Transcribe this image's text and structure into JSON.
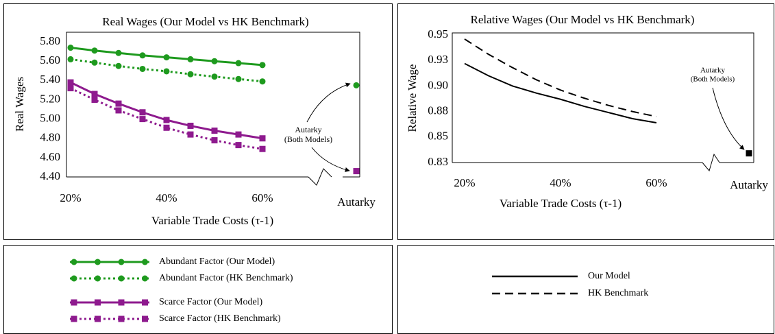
{
  "chart_data": [
    {
      "type": "line",
      "title": "Real Wages (Our Model vs HK Benchmark)",
      "xlabel": "Variable Trade Costs (τ-1)",
      "ylabel": "Real Wages",
      "x": [
        20,
        25,
        30,
        35,
        40,
        45,
        50,
        55,
        60
      ],
      "series": [
        {
          "name": "Abundant Factor (Our Model)",
          "color": "#1e9a1e",
          "marker": "circle",
          "dash": "solid",
          "values": [
            5.74,
            5.71,
            5.685,
            5.66,
            5.64,
            5.62,
            5.6,
            5.58,
            5.56
          ]
        },
        {
          "name": "Abundant Factor (HK Benchmark)",
          "color": "#1e9a1e",
          "marker": "circle",
          "dash": "dotted",
          "values": [
            5.62,
            5.585,
            5.55,
            5.52,
            5.495,
            5.465,
            5.44,
            5.415,
            5.39
          ]
        },
        {
          "name": "Scarce Factor (Our Model)",
          "color": "#8e1a8e",
          "marker": "square",
          "dash": "solid",
          "values": [
            5.38,
            5.26,
            5.16,
            5.07,
            4.99,
            4.93,
            4.88,
            4.84,
            4.8
          ]
        },
        {
          "name": "Scarce Factor (HK Benchmark)",
          "color": "#8e1a8e",
          "marker": "square",
          "dash": "dotted",
          "values": [
            5.32,
            5.2,
            5.09,
            5.0,
            4.91,
            4.84,
            4.78,
            4.73,
            4.69
          ]
        }
      ],
      "autarky": {
        "label": "Autarky",
        "values": [
          5.35,
          4.46
        ],
        "colors": [
          "#1e9a1e",
          "#8e1a8e"
        ],
        "markers": [
          "circle",
          "square"
        ]
      },
      "annotation": [
        "Autarky",
        "(Both Models)"
      ],
      "xlim": [
        20,
        60
      ],
      "xticks": [
        {
          "value": 20,
          "label": "20%"
        },
        {
          "value": 40,
          "label": "40%"
        },
        {
          "value": 60,
          "label": "60%"
        }
      ],
      "ylim": [
        4.4,
        5.9
      ],
      "yticks": [
        {
          "value": 4.4,
          "label": "4.40"
        },
        {
          "value": 4.6,
          "label": "4.60"
        },
        {
          "value": 4.8,
          "label": "4.80"
        },
        {
          "value": 5.0,
          "label": "5.00"
        },
        {
          "value": 5.2,
          "label": "5.20"
        },
        {
          "value": 5.4,
          "label": "5.40"
        },
        {
          "value": 5.6,
          "label": "5.60"
        },
        {
          "value": 5.8,
          "label": "5.80"
        }
      ]
    },
    {
      "type": "line",
      "title": "Relative Wages (Our Model vs HK Benchmark)",
      "xlabel": "Variable Trade Costs (τ-1)",
      "ylabel": "Relative Wage",
      "x": [
        20,
        25,
        30,
        35,
        40,
        45,
        50,
        55,
        60
      ],
      "series": [
        {
          "name": "Our Model",
          "color": "#000000",
          "marker": "none",
          "dash": "solid",
          "values": [
            0.922,
            0.91,
            0.9,
            0.893,
            0.887,
            0.88,
            0.874,
            0.868,
            0.864
          ]
        },
        {
          "name": "HK Benchmark",
          "color": "#000000",
          "marker": "none",
          "dash": "dashed",
          "values": [
            0.946,
            0.931,
            0.918,
            0.906,
            0.896,
            0.888,
            0.881,
            0.875,
            0.87
          ]
        }
      ],
      "autarky": {
        "label": "Autarky",
        "values": [
          0.834
        ],
        "colors": [
          "#000000"
        ],
        "markers": [
          "square"
        ]
      },
      "annotation": [
        "Autarky",
        "(Both Models)"
      ],
      "xlim": [
        20,
        60
      ],
      "xticks": [
        {
          "value": 20,
          "label": "20%"
        },
        {
          "value": 40,
          "label": "40%"
        },
        {
          "value": 60,
          "label": "60%"
        }
      ],
      "ylim": [
        0.825,
        0.95
      ],
      "yticks": [
        {
          "value": 0.825,
          "label": "0.83"
        },
        {
          "value": 0.85,
          "label": "0.85"
        },
        {
          "value": 0.875,
          "label": "0.88"
        },
        {
          "value": 0.9,
          "label": "0.90"
        },
        {
          "value": 0.925,
          "label": "0.93"
        },
        {
          "value": 0.95,
          "label": "0.95"
        }
      ]
    }
  ]
}
